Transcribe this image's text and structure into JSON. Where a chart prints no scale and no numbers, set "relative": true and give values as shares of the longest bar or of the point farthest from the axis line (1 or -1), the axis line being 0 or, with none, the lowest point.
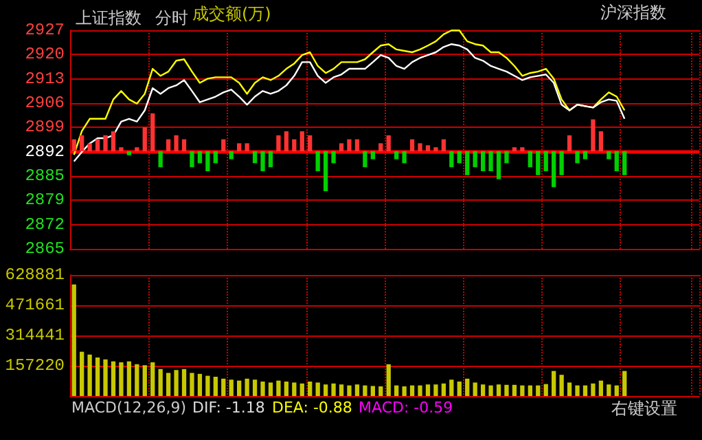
{
  "chart_data": [
    {
      "type": "line",
      "title": "上证指数",
      "subtitle": "分时",
      "annotations": [
        "成交额(万)",
        "沪深指数"
      ],
      "grid": true,
      "tick_labels": "y",
      "line_style": "solid",
      "categories": [
        null,
        null,
        null,
        null,
        null,
        null,
        null,
        null,
        null,
        null,
        null,
        null,
        null,
        null,
        null,
        null,
        null,
        null,
        null,
        null,
        null,
        null,
        null,
        null,
        null,
        null,
        null,
        null,
        null,
        null,
        null,
        null,
        null,
        null,
        null,
        null,
        null,
        null,
        null,
        null,
        null,
        null,
        null,
        null,
        null,
        null,
        null,
        null,
        null,
        null,
        null,
        null,
        null,
        null,
        null,
        null,
        null,
        null,
        null,
        null,
        null,
        null,
        null,
        null,
        null,
        null,
        null,
        null,
        null,
        null,
        null,
        null,
        null,
        null,
        null,
        null,
        null,
        null,
        null,
        null
      ],
      "ylim": [
        2864.75,
        2926.85
      ],
      "yticks": [
        {
          "value": 2864.75,
          "label": "2865"
        },
        {
          "value": 2871.65,
          "label": "2872"
        },
        {
          "value": 2878.55,
          "label": "2879"
        },
        {
          "value": 2885.45,
          "label": "2885"
        },
        {
          "value": 2892.35,
          "label": "2892"
        },
        {
          "value": 2899.25,
          "label": "2899"
        },
        {
          "value": 2906.15,
          "label": "2906"
        },
        {
          "value": 2913.05,
          "label": "2913"
        },
        {
          "value": 2919.95,
          "label": "2920"
        },
        {
          "value": 2926.85,
          "label": "2927"
        }
      ],
      "ref_lines": [
        {
          "axis": "y",
          "value": 2892.35,
          "color": "#ff0000"
        }
      ],
      "series": [
        {
          "color": "#ffffff",
          "values": [
            2889.6,
            2892.3,
            2894.7,
            2896.2,
            2896.2,
            2897.0,
            2900.9,
            2901.7,
            2900.9,
            2904.1,
            2910.4,
            2908.8,
            2910.4,
            2911.2,
            2912.7,
            2909.6,
            2906.4,
            2907.2,
            2908.0,
            2909.2,
            2910.0,
            2908.0,
            2905.7,
            2908.0,
            2909.6,
            2908.8,
            2909.6,
            2911.2,
            2913.9,
            2917.8,
            2917.8,
            2913.9,
            2911.9,
            2913.5,
            2914.3,
            2915.9,
            2915.9,
            2915.9,
            2917.8,
            2919.8,
            2919.0,
            2916.7,
            2915.9,
            2917.8,
            2919.0,
            2919.8,
            2920.6,
            2922.1,
            2922.9,
            2922.5,
            2921.4,
            2919.0,
            2918.2,
            2916.7,
            2915.9,
            2915.1,
            2913.9,
            2912.7,
            2913.5,
            2913.9,
            2914.3,
            2911.9,
            2905.7,
            2904.1,
            2905.7,
            2905.3,
            2904.9,
            2906.4,
            2907.2,
            2906.8,
            2901.7,
            null,
            null,
            null,
            null,
            null,
            null,
            null,
            null,
            null
          ]
        },
        {
          "color": "#ffff00",
          "values": [
            2891.5,
            2898.2,
            2901.7,
            2901.7,
            2901.7,
            2907.2,
            2909.6,
            2907.2,
            2906.0,
            2908.8,
            2915.9,
            2913.9,
            2915.1,
            2918.2,
            2918.6,
            2915.1,
            2911.9,
            2913.1,
            2913.5,
            2913.5,
            2913.5,
            2911.9,
            2908.8,
            2911.9,
            2913.5,
            2912.7,
            2913.9,
            2915.9,
            2917.4,
            2919.8,
            2920.6,
            2916.7,
            2914.7,
            2915.9,
            2917.8,
            2917.8,
            2917.8,
            2918.6,
            2920.6,
            2922.5,
            2922.9,
            2921.4,
            2921.0,
            2920.6,
            2921.4,
            2922.5,
            2923.7,
            2925.7,
            2926.8,
            2926.8,
            2923.7,
            2922.9,
            2922.5,
            2920.6,
            2920.6,
            2919.0,
            2916.7,
            2913.9,
            2914.7,
            2915.1,
            2915.9,
            2913.1,
            2907.2,
            2904.1,
            2905.7,
            2905.3,
            2904.9,
            2907.2,
            2909.2,
            2908.0,
            2904.1,
            null,
            null,
            null,
            null,
            null,
            null,
            null,
            null,
            null
          ]
        }
      ]
    },
    {
      "type": "bar",
      "relative": true,
      "stacked": true,
      "tick_labels": false,
      "categories": [
        null,
        null,
        null,
        null,
        null,
        null,
        null,
        null,
        null,
        null,
        null,
        null,
        null,
        null,
        null,
        null,
        null,
        null,
        null,
        null,
        null,
        null,
        null,
        null,
        null,
        null,
        null,
        null,
        null,
        null,
        null,
        null,
        null,
        null,
        null,
        null,
        null,
        null,
        null,
        null,
        null,
        null,
        null,
        null,
        null,
        null,
        null,
        null,
        null,
        null,
        null,
        null,
        null,
        null,
        null,
        null,
        null,
        null,
        null,
        null,
        null,
        null,
        null,
        null,
        null,
        null,
        null,
        null,
        null,
        null,
        null,
        null,
        null,
        null,
        null,
        null,
        null,
        null,
        null,
        null
      ],
      "series": [
        {
          "color": "#ff3232",
          "values": [
            0.3,
            0.4,
            0.2,
            0.3,
            0.4,
            0.5,
            0.1,
            null,
            0.1,
            0.6,
            0.95,
            null,
            0.3,
            0.4,
            0.3,
            null,
            null,
            null,
            null,
            0.3,
            null,
            0.2,
            0.2,
            null,
            null,
            null,
            0.4,
            0.5,
            0.3,
            0.5,
            0.4,
            null,
            null,
            null,
            0.2,
            0.3,
            0.3,
            null,
            null,
            0.2,
            0.4,
            null,
            null,
            0.3,
            0.2,
            0.15,
            0.1,
            0.3,
            null,
            null,
            null,
            null,
            null,
            null,
            null,
            null,
            0.1,
            0.1,
            null,
            null,
            null,
            null,
            null,
            0.4,
            null,
            null,
            0.8,
            0.5,
            null,
            null,
            null,
            null,
            null,
            null,
            null,
            null,
            null,
            null,
            null,
            null
          ]
        },
        {
          "color": "#00d000",
          "values": [
            null,
            null,
            null,
            null,
            null,
            null,
            null,
            -0.1,
            null,
            null,
            null,
            -0.4,
            null,
            null,
            null,
            -0.4,
            -0.3,
            -0.5,
            -0.3,
            null,
            -0.2,
            null,
            null,
            -0.3,
            -0.5,
            -0.4,
            null,
            null,
            null,
            null,
            null,
            -0.5,
            -1,
            -0.3,
            null,
            null,
            null,
            -0.4,
            -0.2,
            null,
            null,
            -0.2,
            -0.3,
            null,
            null,
            null,
            null,
            null,
            -0.4,
            -0.3,
            -0.6,
            -0.4,
            -0.5,
            -0.5,
            -0.7,
            -0.3,
            null,
            null,
            -0.4,
            -0.6,
            -0.5,
            -0.9,
            -0.6,
            null,
            -0.3,
            -0.2,
            null,
            null,
            -0.2,
            -0.5,
            -0.6,
            null,
            null,
            null,
            null,
            null,
            null,
            null,
            null,
            null
          ]
        }
      ]
    },
    {
      "type": "bar",
      "grid": true,
      "tick_labels": "y",
      "color": "#c8c800",
      "annotations": [
        "MACD(12,26,9)",
        "DIF: -1.18",
        "DEA: -0.88",
        "MACD: -0.59",
        "右键设置"
      ],
      "categories": [
        null,
        null,
        null,
        null,
        null,
        null,
        null,
        null,
        null,
        null,
        null,
        null,
        null,
        null,
        null,
        null,
        null,
        null,
        null,
        null,
        null,
        null,
        null,
        null,
        null,
        null,
        null,
        null,
        null,
        null,
        null,
        null,
        null,
        null,
        null,
        null,
        null,
        null,
        null,
        null,
        null,
        null,
        null,
        null,
        null,
        null,
        null,
        null,
        null,
        null,
        null,
        null,
        null,
        null,
        null,
        null,
        null,
        null,
        null,
        null,
        null,
        null,
        null,
        null,
        null,
        null,
        null,
        null,
        null,
        null,
        null,
        null,
        null,
        null,
        null,
        null,
        null,
        null,
        null,
        null
      ],
      "ylim": [
        0,
        628881
      ],
      "yticks": [
        157220,
        314441,
        471661,
        628881
      ],
      "values": [
        580000,
        230000,
        215000,
        200000,
        190000,
        180000,
        175000,
        180000,
        165000,
        160000,
        175000,
        140000,
        120000,
        135000,
        140000,
        120000,
        115000,
        105000,
        100000,
        90000,
        85000,
        80000,
        90000,
        85000,
        75000,
        70000,
        80000,
        75000,
        70000,
        65000,
        75000,
        70000,
        60000,
        65000,
        60000,
        55000,
        60000,
        55000,
        52000,
        50000,
        165000,
        55000,
        50000,
        55000,
        55000,
        60000,
        60000,
        65000,
        85000,
        75000,
        90000,
        70000,
        60000,
        55000,
        60000,
        58000,
        58000,
        55000,
        55000,
        55000,
        62000,
        130000,
        110000,
        70000,
        55000,
        55000,
        65000,
        80000,
        60000,
        55000,
        130000,
        null,
        null,
        null,
        null,
        null,
        null,
        null,
        null,
        null
      ]
    }
  ]
}
